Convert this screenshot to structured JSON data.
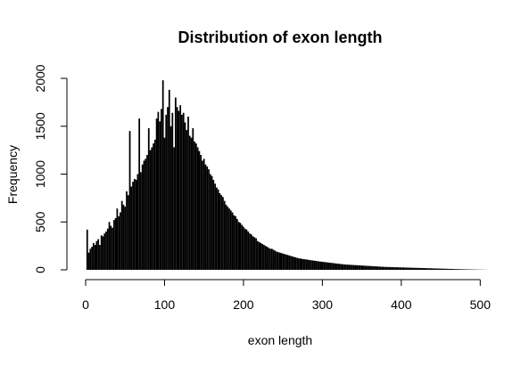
{
  "chart_data": {
    "type": "bar",
    "title": "Distribution of exon length",
    "xlabel": "exon length",
    "ylabel": "Frequency",
    "xlim": [
      0,
      520
    ],
    "ylim": [
      0,
      2000
    ],
    "x_ticks": [
      0,
      100,
      200,
      300,
      400,
      500
    ],
    "y_ticks": [
      0,
      500,
      1000,
      1500,
      2000
    ],
    "grid": false,
    "bar_color": "#000000",
    "bins": {
      "start": 1,
      "width": 2
    },
    "values": [
      420,
      180,
      220,
      240,
      280,
      260,
      300,
      320,
      260,
      360,
      350,
      380,
      400,
      430,
      500,
      460,
      440,
      520,
      540,
      640,
      560,
      600,
      720,
      680,
      660,
      820,
      780,
      1450,
      870,
      920,
      950,
      940,
      1000,
      1580,
      1020,
      1100,
      1140,
      1160,
      1200,
      1480,
      1250,
      1280,
      1320,
      1360,
      1580,
      1650,
      1550,
      1680,
      1980,
      1380,
      1620,
      1700,
      1880,
      1500,
      1640,
      1280,
      1800,
      1700,
      1660,
      1720,
      1620,
      1640,
      1540,
      1460,
      1600,
      1400,
      1380,
      1480,
      1340,
      1320,
      1280,
      1240,
      1200,
      1140,
      1160,
      1100,
      1080,
      1050,
      1000,
      980,
      940,
      900,
      860,
      840,
      800,
      780,
      760,
      720,
      680,
      660,
      640,
      620,
      600,
      570,
      560,
      530,
      500,
      490,
      470,
      450,
      430,
      420,
      400,
      380,
      370,
      350,
      340,
      330,
      300,
      290,
      280,
      270,
      260,
      250,
      240,
      230,
      220,
      220,
      210,
      200,
      190,
      185,
      180,
      175,
      170,
      165,
      160,
      155,
      150,
      145,
      140,
      135,
      130,
      125,
      120,
      118,
      115,
      112,
      110,
      108,
      105,
      102,
      100,
      98,
      95,
      93,
      90,
      88,
      86,
      84,
      82,
      80,
      78,
      76,
      74,
      72,
      70,
      68,
      66,
      64,
      62,
      60,
      58,
      56,
      55,
      54,
      53,
      52,
      51,
      50,
      49,
      48,
      47,
      46,
      45,
      44,
      43,
      42,
      41,
      40,
      39,
      38,
      37,
      36,
      35,
      34,
      33,
      32,
      31,
      30,
      30,
      29,
      29,
      28,
      28,
      27,
      27,
      26,
      26,
      25,
      25,
      24,
      24,
      23,
      23,
      22,
      22,
      21,
      21,
      20,
      20,
      19,
      19,
      18,
      18,
      17,
      17,
      16,
      16,
      15,
      15,
      14,
      14,
      13,
      13,
      12,
      12,
      11,
      11,
      10,
      10,
      9,
      9,
      8,
      8,
      7,
      7,
      6,
      6,
      5,
      5,
      5,
      4,
      4,
      4,
      3,
      3,
      3,
      2,
      2,
      2,
      1,
      1,
      1,
      0,
      0,
      0,
      0,
      0,
      0,
      0,
      0,
      0,
      0,
      0,
      0,
      0,
      0,
      0,
      0,
      0
    ]
  }
}
